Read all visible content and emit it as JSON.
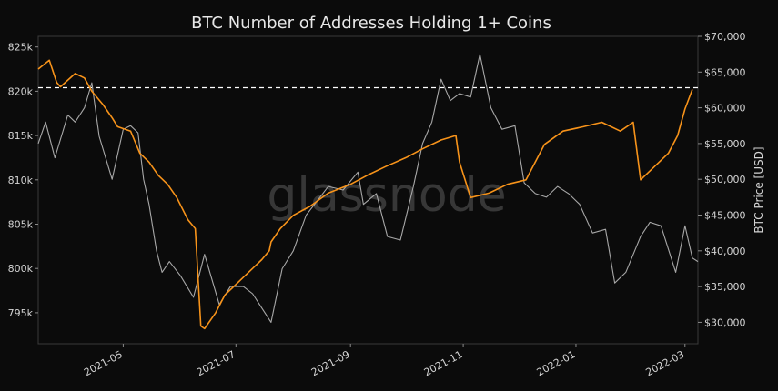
{
  "chart_data": {
    "type": "line",
    "title": "BTC Number of Addresses Holding 1+ Coins",
    "watermark": "glassnode",
    "xlabel": "",
    "ylabel_left": "",
    "ylabel_right": "BTC Price [USD]",
    "x_ticks": [
      "2021-05",
      "2021-07",
      "2021-09",
      "2021-11",
      "2022-01",
      "2022-03"
    ],
    "y_left_ticks": [
      "795k",
      "800k",
      "805k",
      "810k",
      "815k",
      "820k",
      "825k"
    ],
    "y_left_tick_values": [
      795000,
      800000,
      805000,
      810000,
      815000,
      820000,
      825000
    ],
    "y_right_ticks": [
      "$30,000",
      "$35,000",
      "$40,000",
      "$45,000",
      "$50,000",
      "$55,000",
      "$60,000",
      "$65,000",
      "$70,000"
    ],
    "y_right_tick_values": [
      30000,
      35000,
      40000,
      45000,
      50000,
      55000,
      60000,
      65000,
      70000
    ],
    "x_range": [
      "2021-03-16",
      "2022-03-08"
    ],
    "y_left_range": [
      791500,
      826200
    ],
    "y_right_range": [
      27000,
      70000
    ],
    "reference_line": {
      "value": 820400,
      "axis": "left",
      "style": "dashed",
      "color": "#ffffff"
    },
    "grid": false,
    "colors": {
      "background": "#0b0b0b",
      "addresses": "#f7931a",
      "price": "#a8a8a8"
    },
    "series": [
      {
        "axis": "left",
        "x": [
          "2021-03-16",
          "2021-03-22",
          "2021-03-26",
          "2021-03-28",
          "2021-04-05",
          "2021-04-10",
          "2021-04-14",
          "2021-04-20",
          "2021-04-25",
          "2021-04-28",
          "2021-05-05",
          "2021-05-10",
          "2021-05-15",
          "2021-05-20",
          "2021-05-25",
          "2021-05-30",
          "2021-06-05",
          "2021-06-09",
          "2021-06-12",
          "2021-06-14",
          "2021-06-15",
          "2021-06-20",
          "2021-06-25",
          "2021-06-30",
          "2021-07-05",
          "2021-07-10",
          "2021-07-15",
          "2021-07-19",
          "2021-07-20",
          "2021-07-25",
          "2021-08-01",
          "2021-08-10",
          "2021-08-20",
          "2021-09-01",
          "2021-09-10",
          "2021-09-20",
          "2021-10-01",
          "2021-10-10",
          "2021-10-20",
          "2021-10-28",
          "2021-10-30",
          "2021-11-05",
          "2021-11-15",
          "2021-11-25",
          "2021-12-05",
          "2021-12-15",
          "2021-12-25",
          "2022-01-05",
          "2022-01-15",
          "2022-01-25",
          "2022-02-01",
          "2022-02-05",
          "2022-02-10",
          "2022-02-15",
          "2022-02-20",
          "2022-02-25",
          "2022-03-01",
          "2022-03-05"
        ],
        "values": [
          822500,
          823500,
          821000,
          820500,
          822000,
          821500,
          820000,
          818500,
          817000,
          816000,
          815500,
          813000,
          812000,
          810500,
          809500,
          808000,
          805500,
          804500,
          793500,
          793200,
          793500,
          795000,
          797000,
          798000,
          799000,
          800000,
          801000,
          802000,
          803000,
          804500,
          806000,
          807000,
          808500,
          809500,
          810500,
          811500,
          812500,
          813500,
          814500,
          815000,
          812000,
          808000,
          808500,
          809500,
          810000,
          814000,
          815500,
          816000,
          816500,
          815500,
          816500,
          810000,
          811000,
          812000,
          813000,
          815000,
          818000,
          820200
        ]
      },
      {
        "axis": "right",
        "x": [
          "2021-03-16",
          "2021-03-20",
          "2021-03-25",
          "2021-04-01",
          "2021-04-05",
          "2021-04-10",
          "2021-04-14",
          "2021-04-18",
          "2021-04-25",
          "2021-05-01",
          "2021-05-05",
          "2021-05-09",
          "2021-05-12",
          "2021-05-15",
          "2021-05-19",
          "2021-05-22",
          "2021-05-26",
          "2021-06-01",
          "2021-06-08",
          "2021-06-14",
          "2021-06-22",
          "2021-06-28",
          "2021-07-05",
          "2021-07-10",
          "2021-07-15",
          "2021-07-20",
          "2021-07-26",
          "2021-08-01",
          "2021-08-08",
          "2021-08-14",
          "2021-08-20",
          "2021-08-28",
          "2021-09-05",
          "2021-09-08",
          "2021-09-15",
          "2021-09-21",
          "2021-09-28",
          "2021-10-05",
          "2021-10-10",
          "2021-10-15",
          "2021-10-20",
          "2021-10-25",
          "2021-10-30",
          "2021-11-05",
          "2021-11-10",
          "2021-11-16",
          "2021-11-22",
          "2021-11-29",
          "2021-12-04",
          "2021-12-10",
          "2021-12-16",
          "2021-12-22",
          "2021-12-28",
          "2022-01-03",
          "2022-01-10",
          "2022-01-17",
          "2022-01-22",
          "2022-01-28",
          "2022-02-05",
          "2022-02-10",
          "2022-02-16",
          "2022-02-24",
          "2022-03-01",
          "2022-03-05",
          "2022-03-08"
        ],
        "values": [
          55000,
          58000,
          53000,
          59000,
          58000,
          60000,
          63500,
          56000,
          50000,
          57000,
          57500,
          56500,
          50000,
          46500,
          40000,
          37000,
          38500,
          36500,
          33500,
          39500,
          32500,
          35000,
          35000,
          34000,
          32000,
          30000,
          37500,
          40000,
          45000,
          47000,
          49000,
          48500,
          51000,
          46500,
          48000,
          42000,
          41500,
          49000,
          55000,
          58000,
          64000,
          61000,
          62000,
          61500,
          67500,
          60000,
          57000,
          57500,
          49500,
          48000,
          47500,
          49000,
          48000,
          46500,
          42500,
          43000,
          35500,
          37000,
          42000,
          44000,
          43500,
          37000,
          43500,
          39000,
          38500
        ]
      }
    ]
  }
}
